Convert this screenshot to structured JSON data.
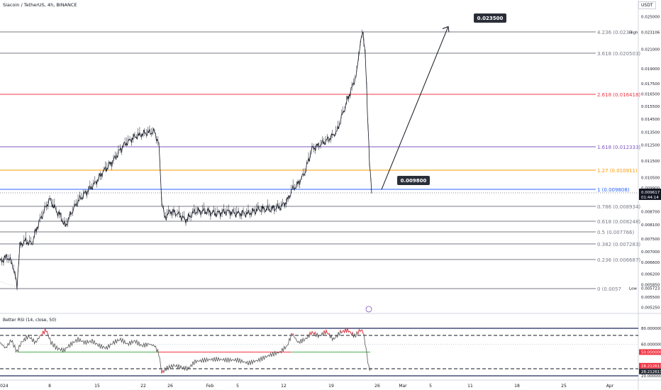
{
  "header": {
    "title": "Siacoin / TetherUS, 4h, BINANCE",
    "currency": "USDT"
  },
  "chart_data": {
    "type": "line",
    "symbol": "SCUSDT",
    "ylim": [
      0.00525,
      0.0255
    ],
    "ticks": [
      "0.025000",
      "0.023106",
      "0.021000",
      "0.019000",
      "0.017500",
      "0.016500",
      "0.015500",
      "0.014500",
      "0.013500",
      "0.012500",
      "0.011500",
      "0.010500",
      "0.009900",
      "0.009617",
      "0.008700",
      "0.008100",
      "0.007500",
      "0.007000",
      "0.006600",
      "0.006200",
      "0.005850",
      "0.005723",
      "0.005500",
      "0.005250"
    ],
    "x_ticks": [
      "2024",
      "8",
      "15",
      "22",
      "26",
      "Feb",
      "5",
      "12",
      "19",
      "26",
      "Mar",
      "5",
      "11",
      "18",
      "25",
      "Apr"
    ],
    "fib_levels": [
      {
        "label": "4.236 (0.0230",
        "value": 0.0231,
        "color": "#787b86"
      },
      {
        "label": "3.618 (0.020503)",
        "value": 0.020503,
        "color": "#787b86"
      },
      {
        "label": "2.618 (0.016418)",
        "value": 0.016418,
        "color": "#f23645"
      },
      {
        "label": "1.618 (0.012333)",
        "value": 0.012333,
        "color": "#7e57c2"
      },
      {
        "label": "1.27 (0.010911)",
        "value": 0.010911,
        "color": "#ff9800"
      },
      {
        "label": "1 (0.009808)",
        "value": 0.009808,
        "color": "#2962ff"
      },
      {
        "label": "0.786 (0.008934)",
        "value": 0.008934,
        "color": "#787b86"
      },
      {
        "label": "0.618 (0.008248)",
        "value": 0.008248,
        "color": "#787b86"
      },
      {
        "label": "0.5 (0.007766)",
        "value": 0.007766,
        "color": "#787b86"
      },
      {
        "label": "0.382 (0.007283)",
        "value": 0.007283,
        "color": "#787b86"
      },
      {
        "label": "0.236 (0.006687)",
        "value": 0.006687,
        "color": "#787b86"
      },
      {
        "label": "0 (0.0057",
        "value": 0.0057,
        "color": "#787b86"
      }
    ],
    "price_series": [
      [
        0,
        0.0066
      ],
      [
        10,
        0.0068
      ],
      [
        18,
        0.0065
      ],
      [
        24,
        0.0058
      ],
      [
        28,
        0.0072
      ],
      [
        35,
        0.0074
      ],
      [
        45,
        0.0073
      ],
      [
        55,
        0.0082
      ],
      [
        62,
        0.0087
      ],
      [
        70,
        0.0093
      ],
      [
        78,
        0.0088
      ],
      [
        85,
        0.0085
      ],
      [
        92,
        0.008
      ],
      [
        100,
        0.0086
      ],
      [
        110,
        0.0092
      ],
      [
        120,
        0.0096
      ],
      [
        128,
        0.0099
      ],
      [
        135,
        0.0102
      ],
      [
        145,
        0.0108
      ],
      [
        160,
        0.0115
      ],
      [
        175,
        0.0125
      ],
      [
        190,
        0.0131
      ],
      [
        205,
        0.0134
      ],
      [
        218,
        0.0135
      ],
      [
        224,
        0.0125
      ],
      [
        228,
        0.0092
      ],
      [
        232,
        0.0084
      ],
      [
        240,
        0.0087
      ],
      [
        250,
        0.0086
      ],
      [
        262,
        0.0083
      ],
      [
        275,
        0.0087
      ],
      [
        290,
        0.0087
      ],
      [
        305,
        0.0086
      ],
      [
        320,
        0.0087
      ],
      [
        335,
        0.0086
      ],
      [
        350,
        0.0086
      ],
      [
        365,
        0.0088
      ],
      [
        380,
        0.0088
      ],
      [
        395,
        0.0089
      ],
      [
        405,
        0.0092
      ],
      [
        412,
        0.0098
      ],
      [
        420,
        0.0101
      ],
      [
        430,
        0.0108
      ],
      [
        440,
        0.0122
      ],
      [
        452,
        0.0125
      ],
      [
        465,
        0.013
      ],
      [
        475,
        0.0135
      ],
      [
        485,
        0.0152
      ],
      [
        495,
        0.0168
      ],
      [
        503,
        0.0185
      ],
      [
        508,
        0.0218
      ],
      [
        512,
        0.023
      ],
      [
        515,
        0.0205
      ],
      [
        518,
        0.015
      ],
      [
        521,
        0.0115
      ],
      [
        524,
        0.0096
      ]
    ],
    "projection": {
      "from": [
        538,
        0.0098
      ],
      "to": [
        632,
        0.02375
      ]
    },
    "labels": [
      {
        "text": "0.023500",
        "value": 0.0235
      },
      {
        "text": "0.009800",
        "value": 0.0098
      }
    ],
    "price_tags": [
      {
        "text": "High",
        "value": 0.023106
      },
      {
        "text": "Low",
        "value": 0.005723
      }
    ],
    "current_price": {
      "value": "0.009617",
      "countdown": "01:44:14"
    },
    "rsi": {
      "title": "Better RSI (14, close, 50)",
      "ylim": [
        20,
        80
      ],
      "ticks": [
        "80.000000",
        "60.000000",
        "50.000000",
        "28.212613",
        "28.212613",
        "20.000000"
      ],
      "series": [
        [
          0,
          62
        ],
        [
          8,
          55
        ],
        [
          16,
          65
        ],
        [
          24,
          50
        ],
        [
          30,
          62
        ],
        [
          40,
          70
        ],
        [
          50,
          62
        ],
        [
          58,
          72
        ],
        [
          65,
          78
        ],
        [
          72,
          62
        ],
        [
          80,
          55
        ],
        [
          90,
          52
        ],
        [
          100,
          60
        ],
        [
          110,
          66
        ],
        [
          120,
          62
        ],
        [
          130,
          64
        ],
        [
          140,
          58
        ],
        [
          150,
          55
        ],
        [
          160,
          62
        ],
        [
          170,
          66
        ],
        [
          180,
          60
        ],
        [
          190,
          64
        ],
        [
          200,
          58
        ],
        [
          210,
          60
        ],
        [
          218,
          58
        ],
        [
          224,
          48
        ],
        [
          228,
          24
        ],
        [
          234,
          29
        ],
        [
          245,
          33
        ],
        [
          255,
          31
        ],
        [
          265,
          29
        ],
        [
          275,
          38
        ],
        [
          290,
          40
        ],
        [
          305,
          41
        ],
        [
          320,
          40
        ],
        [
          335,
          40
        ],
        [
          350,
          36
        ],
        [
          365,
          40
        ],
        [
          380,
          46
        ],
        [
          395,
          50
        ],
        [
          405,
          58
        ],
        [
          412,
          74
        ],
        [
          420,
          62
        ],
        [
          430,
          66
        ],
        [
          440,
          75
        ],
        [
          450,
          70
        ],
        [
          460,
          76
        ],
        [
          470,
          66
        ],
        [
          480,
          75
        ],
        [
          490,
          78
        ],
        [
          500,
          70
        ],
        [
          508,
          78
        ],
        [
          512,
          76
        ],
        [
          516,
          55
        ],
        [
          520,
          30
        ],
        [
          524,
          28
        ]
      ]
    }
  }
}
